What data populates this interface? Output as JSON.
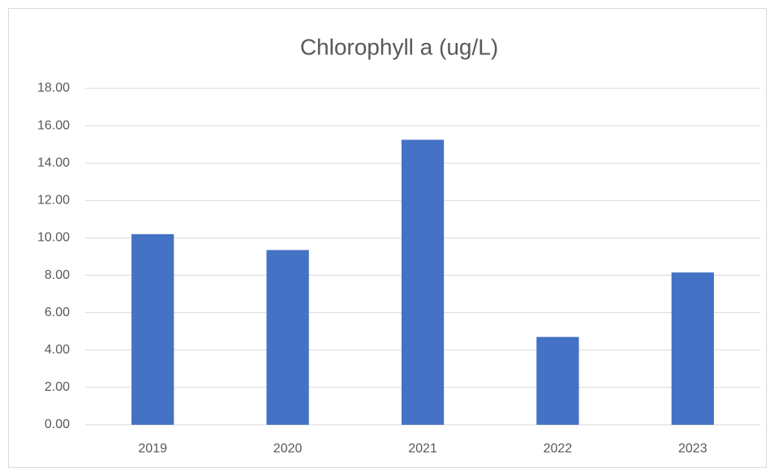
{
  "chart_data": {
    "type": "bar",
    "title": "Chlorophyll a (ug/L)",
    "categories": [
      "2019",
      "2020",
      "2021",
      "2022",
      "2023"
    ],
    "values": [
      10.2,
      9.35,
      15.25,
      4.7,
      8.15
    ],
    "color": "#4472c4",
    "ylim": [
      0,
      18
    ],
    "yticks": [
      {
        "value": 0,
        "label": "0.00"
      },
      {
        "value": 2,
        "label": "2.00"
      },
      {
        "value": 4,
        "label": "4.00"
      },
      {
        "value": 6,
        "label": "6.00"
      },
      {
        "value": 8,
        "label": "8.00"
      },
      {
        "value": 10,
        "label": "10.00"
      },
      {
        "value": 12,
        "label": "12.00"
      },
      {
        "value": 14,
        "label": "14.00"
      },
      {
        "value": 16,
        "label": "16.00"
      },
      {
        "value": 18,
        "label": "18.00"
      }
    ],
    "grid": true
  }
}
